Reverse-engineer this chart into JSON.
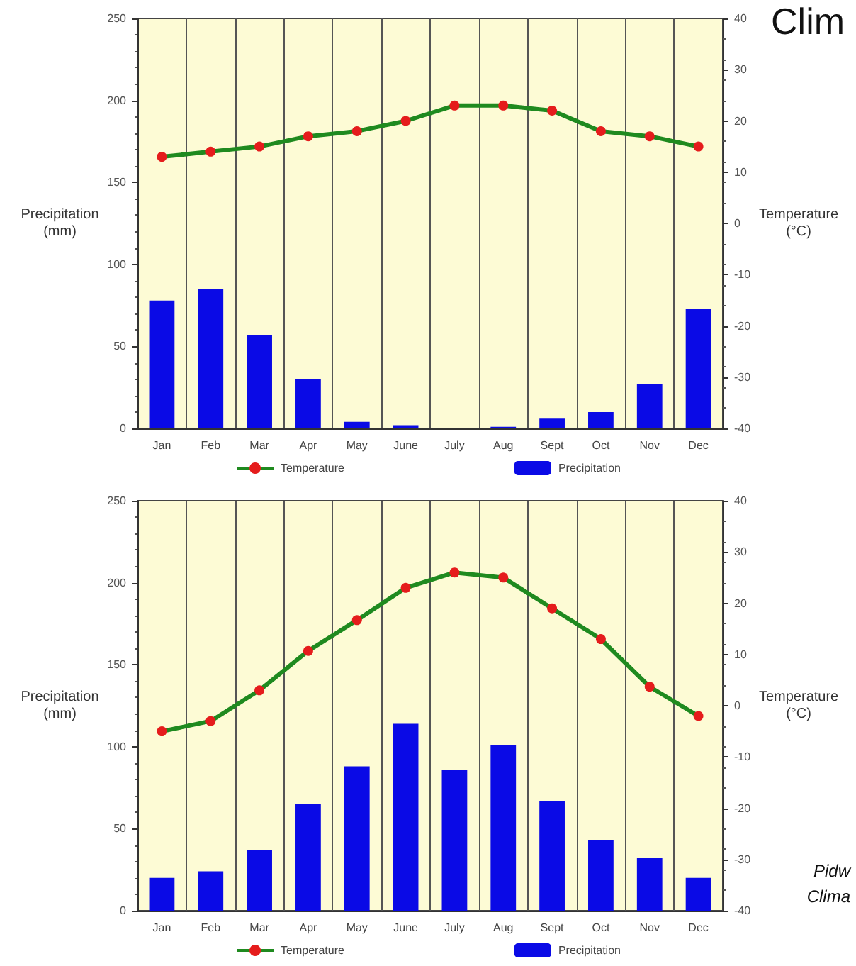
{
  "chart_data": [
    {
      "type": "bar",
      "annotations": [
        "Clim"
      ],
      "categories": [
        "Jan",
        "Feb",
        "Mar",
        "Apr",
        "May",
        "June",
        "July",
        "Aug",
        "Sept",
        "Oct",
        "Nov",
        "Dec"
      ],
      "ylabel": "Precipitation\n(mm)",
      "y2label": "Temperature\n(°C)",
      "series": [
        {
          "name": "Temperature",
          "type": "line",
          "axis": "y2",
          "color": "#1f8a1f",
          "values": [
            13,
            14,
            15,
            17,
            18,
            20,
            23,
            23,
            22,
            18,
            17,
            15
          ]
        },
        {
          "name": "Precipitation",
          "color": "#0a0ae6",
          "values": [
            78,
            85,
            57,
            30,
            4,
            2,
            0,
            1,
            6,
            10,
            27,
            73
          ]
        }
      ],
      "ylim": [
        0,
        250
      ],
      "yticks": [
        0,
        50,
        100,
        150,
        200,
        250
      ],
      "y2lim": [
        -40,
        40
      ],
      "y2ticks": [
        -40,
        -30,
        -20,
        -10,
        0,
        10,
        20,
        30,
        40
      ],
      "grid": "x",
      "legend": "bottom",
      "marker": "circle"
    },
    {
      "type": "bar",
      "categories": [
        "Jan",
        "Feb",
        "Mar",
        "Apr",
        "May",
        "June",
        "July",
        "Aug",
        "Sept",
        "Oct",
        "Nov",
        "Dec"
      ],
      "ylabel": "Precipitation\n(mm)",
      "y2label": "Temperature\n(°C)",
      "series": [
        {
          "name": "Temperature",
          "type": "line",
          "axis": "y2",
          "color": "#1f8a1f",
          "values": [
            -5,
            -3,
            3,
            10.7,
            16.7,
            23,
            26,
            25,
            19,
            13,
            3.7,
            -2
          ]
        },
        {
          "name": "Precipitation",
          "color": "#0a0ae6",
          "values": [
            20,
            24,
            37,
            65,
            88,
            114,
            86,
            101,
            67,
            43,
            32,
            20
          ]
        }
      ],
      "ylim": [
        0,
        250
      ],
      "yticks": [
        0,
        50,
        100,
        150,
        200,
        250
      ],
      "y2lim": [
        -40,
        40
      ],
      "y2ticks": [
        -40,
        -30,
        -20,
        -10,
        0,
        10,
        20,
        30,
        40
      ],
      "grid": "x",
      "legend": "bottom",
      "marker": "circle",
      "annotations": [
        "Pidw",
        "Clima"
      ]
    }
  ]
}
